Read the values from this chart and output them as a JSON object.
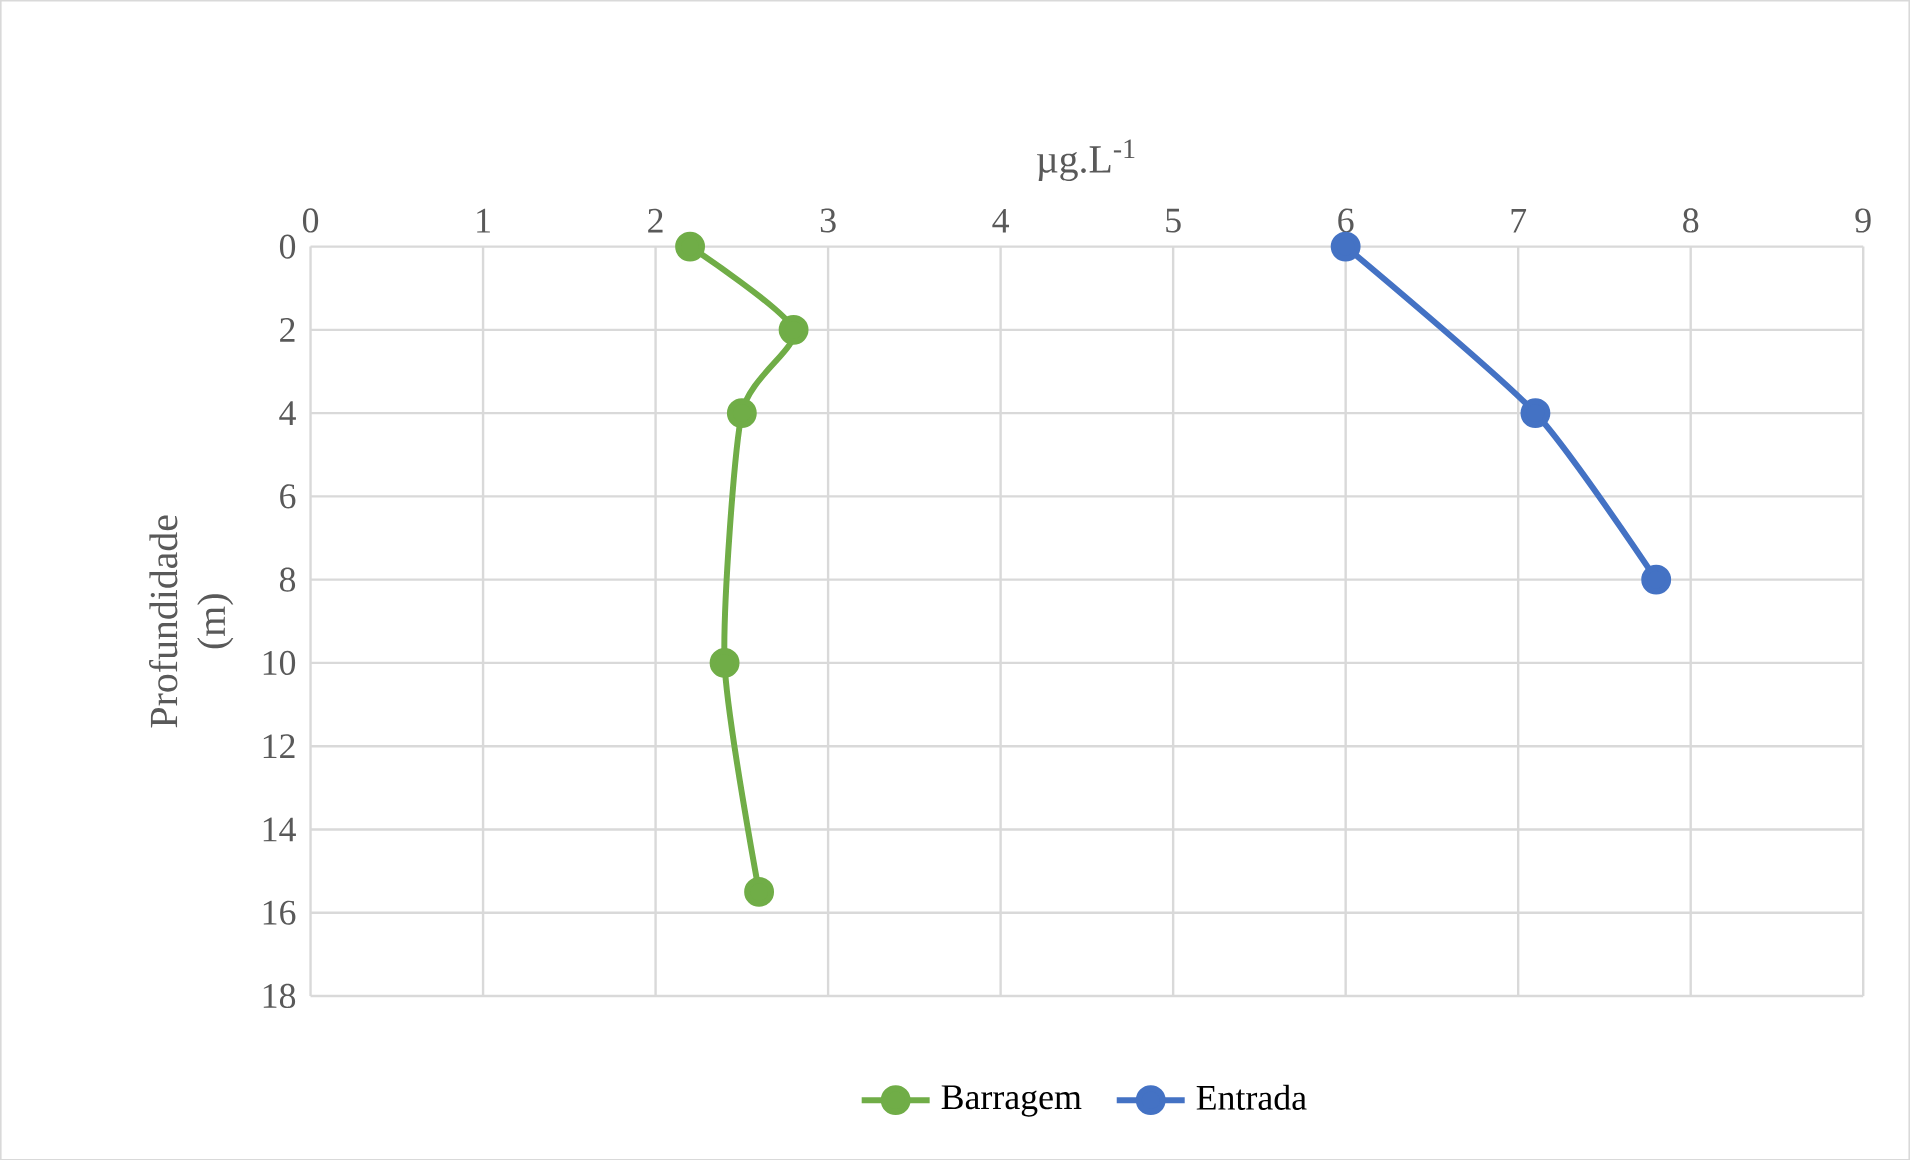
{
  "chart_data": {
    "type": "line",
    "xlabel": "µg.L$^{-1}$",
    "ylabel": "Profundidade (m)",
    "xlim": [
      0,
      9
    ],
    "xticks": [
      0,
      1,
      2,
      3,
      4,
      5,
      6,
      7,
      8,
      9
    ],
    "ylim": [
      18,
      0
    ],
    "yticks": [
      0,
      2,
      4,
      6,
      8,
      10,
      12,
      14,
      16,
      18
    ],
    "grid": true,
    "legend": "bottom",
    "marker": "circle",
    "line_style": "solid",
    "series": [
      {
        "name": "Barragem",
        "color": "#70ad47",
        "x": [
          2.2,
          2.8,
          2.5,
          2.4,
          2.6
        ],
        "values": [
          0,
          2,
          4,
          10,
          15.5
        ]
      },
      {
        "name": "Entrada",
        "color": "#4472c4",
        "x": [
          6,
          7.1,
          7.8
        ],
        "values": [
          0,
          4,
          8
        ]
      }
    ]
  }
}
